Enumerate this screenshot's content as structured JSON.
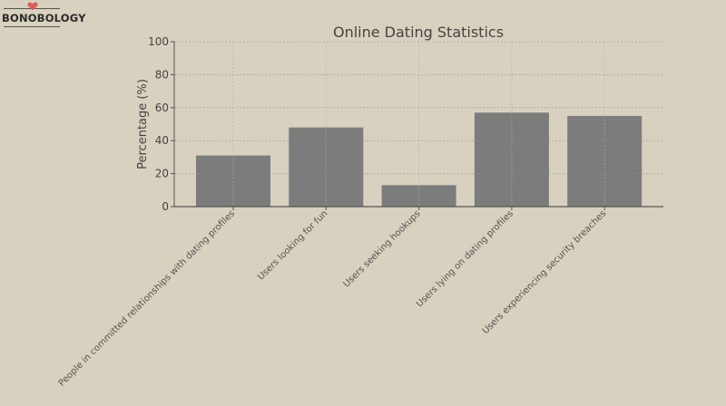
{
  "logo": {
    "text": "BONOBOLOGY"
  },
  "chart_data": {
    "type": "bar",
    "title": "Online Dating Statistics",
    "xlabel": "",
    "ylabel": "Percentage (%)",
    "ylim": [
      0,
      100
    ],
    "yticks": [
      0,
      20,
      40,
      60,
      80,
      100
    ],
    "grid": true,
    "categories": [
      "People in committed relationships with dating profiles",
      "Users looking for fun",
      "Users seeking hookups",
      "Users lying on dating profiles",
      "Users experiencing security breaches"
    ],
    "values": [
      31,
      48,
      13,
      57,
      55
    ],
    "colors": {
      "bar": "#7c7c7c",
      "background": "#d8d1bf",
      "grid": "#c2bcad",
      "axis": "#555555"
    }
  }
}
